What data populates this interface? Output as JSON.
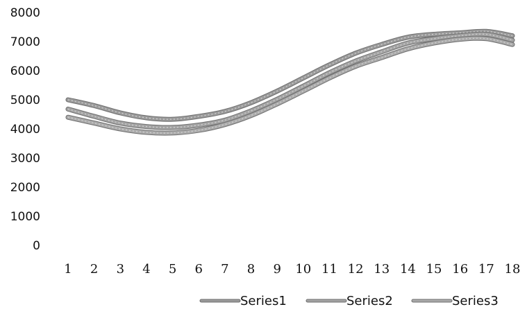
{
  "chart_data": {
    "type": "line",
    "title": "",
    "xlabel": "",
    "ylabel": "",
    "x": [
      "1",
      "2",
      "3",
      "4",
      "5",
      "6",
      "7",
      "8",
      "9",
      "10",
      "11",
      "12",
      "13",
      "14",
      "15",
      "16",
      "17",
      "18"
    ],
    "ylim": [
      0,
      8000
    ],
    "y_ticks": [
      "0",
      "1000",
      "2000",
      "3000",
      "4000",
      "5000",
      "6000",
      "7000",
      "8000"
    ],
    "grid": false,
    "legend_position": "bottom",
    "series": [
      {
        "name": "Series1",
        "color": "#9a9a9a",
        "values": [
          5000,
          4800,
          4550,
          4380,
          4330,
          4430,
          4600,
          4900,
          5300,
          5750,
          6200,
          6600,
          6900,
          7150,
          7250,
          7300,
          7350,
          7200
        ]
      },
      {
        "name": "Series2",
        "color": "#a3a3a3",
        "values": [
          4680,
          4430,
          4200,
          4080,
          4050,
          4130,
          4300,
          4620,
          5020,
          5470,
          5930,
          6330,
          6650,
          6950,
          7100,
          7200,
          7250,
          7050
        ]
      },
      {
        "name": "Series3",
        "color": "#aaaaaa",
        "values": [
          4400,
          4200,
          4000,
          3880,
          3860,
          3950,
          4150,
          4460,
          4860,
          5300,
          5750,
          6150,
          6450,
          6750,
          6950,
          7080,
          7100,
          6900
        ]
      }
    ]
  }
}
